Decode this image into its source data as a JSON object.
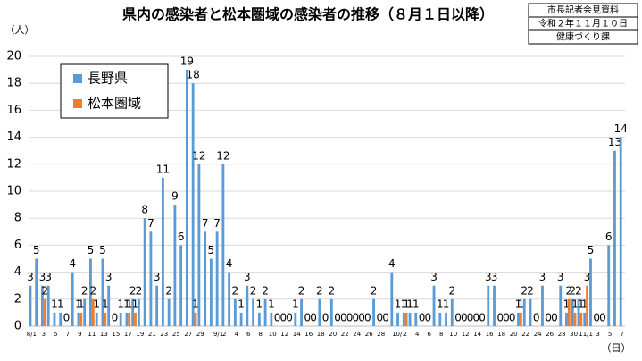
{
  "chart_data": {
    "type": "bar",
    "title": "県内の感染者と松本圏域の感染者の推移（８月１日以降）",
    "note_lines": [
      "市長記者会見資料",
      "令和２年１１月１０日",
      "健康づくり課"
    ],
    "ylabel": "（人）",
    "xlabel": "（日）",
    "ylim": [
      0,
      20
    ],
    "yticks": [
      0,
      2,
      4,
      6,
      8,
      10,
      12,
      14,
      16,
      18,
      20
    ],
    "categories": [
      "8/1",
      null,
      "3",
      null,
      "5",
      null,
      "7",
      null,
      "9",
      null,
      "11",
      null,
      "13",
      null,
      "15",
      null,
      "17",
      null,
      "19",
      null,
      "21",
      null,
      "23",
      null,
      "25",
      null,
      "27",
      null,
      "29",
      null,
      null,
      "9/1",
      "2",
      null,
      "4",
      null,
      "6",
      null,
      "8",
      null,
      "10",
      null,
      "12",
      null,
      "14",
      null,
      "16",
      null,
      "18",
      null,
      "20",
      null,
      "22",
      null,
      "24",
      null,
      "26",
      null,
      "28",
      null,
      null,
      "10/1",
      "2",
      null,
      "4",
      null,
      "6",
      null,
      "8",
      null,
      "10",
      null,
      "12",
      null,
      "14",
      null,
      "16",
      null,
      "18",
      null,
      "20",
      null,
      "22",
      null,
      "24",
      null,
      "26",
      null,
      "28",
      null,
      "30",
      null,
      "11/1",
      null,
      "3",
      null,
      "5",
      null,
      "7"
    ],
    "series": [
      {
        "name": "長野県",
        "color": "#5b9bd5",
        "values": [
          3,
          5,
          3,
          3,
          1,
          1,
          0,
          4,
          1,
          2,
          5,
          1,
          5,
          3,
          0,
          1,
          1,
          2,
          2,
          8,
          7,
          3,
          11,
          2,
          9,
          6,
          19,
          18,
          12,
          7,
          5,
          7,
          12,
          4,
          2,
          1,
          3,
          2,
          1,
          2,
          1,
          0,
          0,
          0,
          1,
          2,
          0,
          0,
          2,
          0,
          2,
          0,
          0,
          0,
          0,
          0,
          0,
          2,
          0,
          0,
          4,
          1,
          1,
          1,
          1,
          0,
          0,
          3,
          1,
          1,
          2,
          0,
          0,
          0,
          0,
          0,
          3,
          3,
          0,
          0,
          0,
          1,
          2,
          2,
          0,
          3,
          0,
          0,
          3,
          1,
          2,
          2,
          1,
          5,
          0,
          0,
          6,
          13,
          14
        ]
      },
      {
        "name": "松本圏域",
        "color": "#ed7d31",
        "values": [
          0,
          0,
          2,
          0,
          0,
          0,
          0,
          0,
          1,
          0,
          2,
          0,
          1,
          0,
          0,
          0,
          1,
          1,
          0,
          0,
          0,
          0,
          0,
          0,
          0,
          0,
          0,
          1,
          0,
          0,
          0,
          0,
          0,
          0,
          0,
          0,
          0,
          0,
          0,
          0,
          0,
          0,
          0,
          0,
          0,
          0,
          0,
          0,
          0,
          0,
          0,
          0,
          0,
          0,
          0,
          0,
          0,
          0,
          0,
          0,
          0,
          0,
          1,
          0,
          0,
          0,
          0,
          0,
          0,
          0,
          0,
          0,
          0,
          0,
          0,
          0,
          0,
          0,
          0,
          0,
          0,
          1,
          0,
          0,
          0,
          0,
          0,
          0,
          0,
          2,
          1,
          1,
          3,
          0,
          0,
          0,
          0,
          0,
          0
        ]
      }
    ],
    "legend": "upper-left",
    "grid": true
  }
}
